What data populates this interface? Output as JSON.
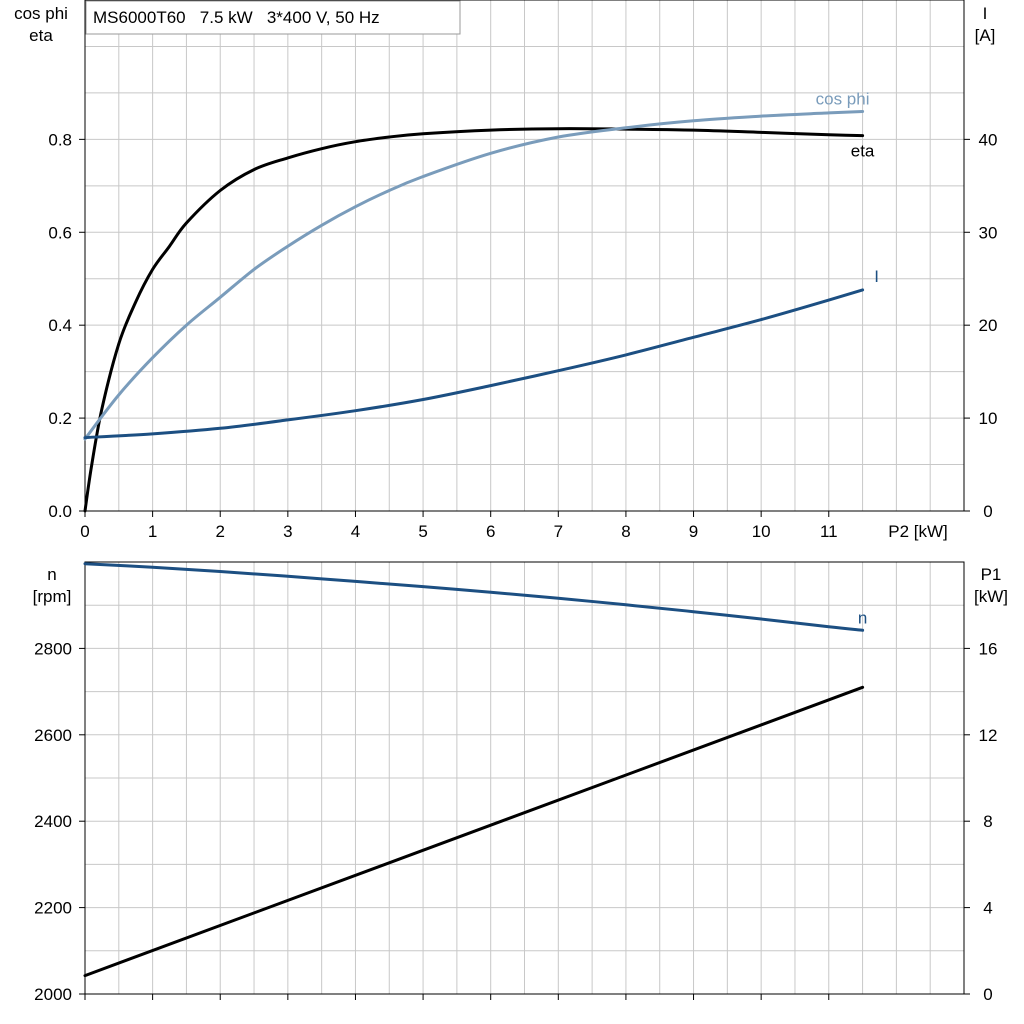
{
  "title_box": "MS6000T60   7.5 kW   3*400 V, 50 Hz",
  "colors": {
    "eta": "#000000",
    "cos_phi": "#7a9cbb",
    "current": "#1c4f82",
    "speed": "#1c4f82",
    "p1": "#000000",
    "grid": "#c8c8c8"
  },
  "chart_data": [
    {
      "type": "line",
      "left_axis_label": [
        "cos phi",
        "eta"
      ],
      "right_axis_label": [
        "I",
        "[A]"
      ],
      "xlabel": "P2 [kW]",
      "xlim": [
        0,
        13
      ],
      "ylim_left": [
        0,
        1.1
      ],
      "ylim_right": [
        0,
        55
      ],
      "x_ticks": [
        0,
        1,
        2,
        3,
        4,
        5,
        6,
        7,
        8,
        9,
        10,
        11
      ],
      "y_left_ticks": [
        "0.0",
        "0.2",
        "0.4",
        "0.6",
        "0.8"
      ],
      "y_left_tick_values": [
        0,
        0.2,
        0.4,
        0.6,
        0.8
      ],
      "y_right_ticks": [
        "0",
        "10",
        "20",
        "30",
        "40"
      ],
      "y_right_tick_values": [
        0,
        10,
        20,
        30,
        40
      ],
      "grid": true,
      "series": [
        {
          "name": "eta",
          "axis": "left",
          "color_key": "eta",
          "x": [
            0,
            0.1,
            0.25,
            0.5,
            0.75,
            1,
            1.25,
            1.5,
            2,
            2.5,
            3,
            3.5,
            4,
            4.5,
            5,
            6,
            7,
            8,
            9,
            10,
            11,
            11.5
          ],
          "y": [
            0,
            0.1,
            0.22,
            0.36,
            0.45,
            0.52,
            0.57,
            0.62,
            0.69,
            0.735,
            0.76,
            0.78,
            0.795,
            0.805,
            0.812,
            0.82,
            0.823,
            0.822,
            0.82,
            0.815,
            0.81,
            0.808
          ]
        },
        {
          "name": "cos phi",
          "axis": "left",
          "color_key": "cos_phi",
          "x": [
            0,
            0.5,
            1,
            1.5,
            2,
            2.5,
            3,
            3.5,
            4,
            4.5,
            5,
            6,
            7,
            8,
            9,
            10,
            11,
            11.5
          ],
          "y": [
            0.155,
            0.25,
            0.33,
            0.4,
            0.46,
            0.52,
            0.57,
            0.615,
            0.655,
            0.69,
            0.72,
            0.77,
            0.805,
            0.825,
            0.84,
            0.85,
            0.857,
            0.86
          ]
        },
        {
          "name": "I",
          "axis": "right",
          "color_key": "current",
          "x": [
            0,
            1,
            2,
            3,
            4,
            5,
            6,
            7,
            8,
            9,
            10,
            11,
            11.5
          ],
          "y": [
            7.9,
            8.3,
            8.9,
            9.8,
            10.8,
            12.0,
            13.5,
            15.1,
            16.8,
            18.7,
            20.6,
            22.7,
            23.8
          ]
        }
      ]
    },
    {
      "type": "line",
      "left_axis_label": [
        "n",
        "[rpm]"
      ],
      "right_axis_label": [
        "P1",
        "[kW]"
      ],
      "xlim": [
        0,
        13
      ],
      "ylim_left": [
        2000,
        3000
      ],
      "ylim_right": [
        0,
        20
      ],
      "y_left_ticks": [
        "2000",
        "2200",
        "2400",
        "2600",
        "2800"
      ],
      "y_left_tick_values": [
        2000,
        2200,
        2400,
        2600,
        2800
      ],
      "y_right_ticks": [
        "0",
        "4",
        "8",
        "12",
        "16"
      ],
      "y_right_tick_values": [
        0,
        4,
        8,
        12,
        16
      ],
      "grid": true,
      "series": [
        {
          "name": "n",
          "axis": "left",
          "color_key": "speed",
          "x": [
            0,
            1,
            2,
            3,
            4,
            5,
            6,
            7,
            8,
            9,
            10,
            11,
            11.5
          ],
          "y": [
            2996,
            2988,
            2978,
            2967,
            2955,
            2943,
            2930,
            2916,
            2901,
            2885,
            2868,
            2850,
            2842
          ]
        },
        {
          "axis": "right",
          "color_key": "p1",
          "x": [
            0,
            11.5
          ],
          "y": [
            0.85,
            14.2
          ]
        }
      ]
    }
  ]
}
